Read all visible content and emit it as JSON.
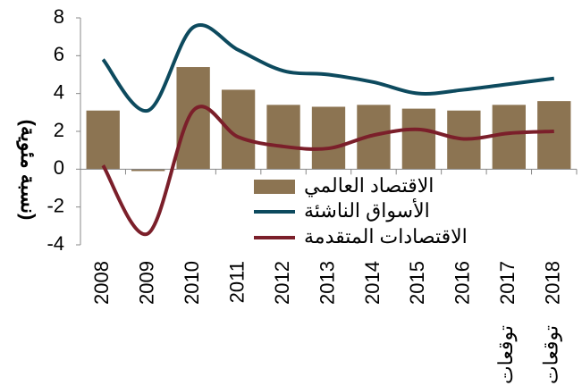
{
  "chart_data": {
    "type": "bar_line",
    "y_label": "(نسبة مئوية)",
    "categories": [
      "2008",
      "2009",
      "2010",
      "2011",
      "2012",
      "2013",
      "2014",
      "2015",
      "2016",
      "2017",
      "2018"
    ],
    "forecast_labels": [
      null,
      null,
      null,
      null,
      null,
      null,
      null,
      null,
      null,
      "توقعات",
      "توقعات"
    ],
    "series": [
      {
        "name": "الاقتصاد العالمي",
        "kind": "bar",
        "color": "#8c7452",
        "values": [
          3.1,
          -0.1,
          5.4,
          4.2,
          3.4,
          3.3,
          3.4,
          3.2,
          3.1,
          3.4,
          3.6
        ]
      },
      {
        "name": "الأسواق الناشئة",
        "kind": "line",
        "color": "#0d4a5e",
        "values": [
          5.8,
          3.1,
          7.5,
          6.3,
          5.2,
          5.0,
          4.6,
          4.0,
          4.2,
          4.5,
          4.8
        ]
      },
      {
        "name": "الاقتصادات المتقدمة",
        "kind": "line",
        "color": "#7b1f2a",
        "values": [
          0.2,
          -3.4,
          3.1,
          1.7,
          1.2,
          1.1,
          1.8,
          2.1,
          1.6,
          1.9,
          2.0
        ]
      }
    ],
    "ylim": [
      -4,
      8
    ],
    "yticks": [
      -4,
      -2,
      0,
      2,
      4,
      6,
      8
    ],
    "legend": "center"
  }
}
